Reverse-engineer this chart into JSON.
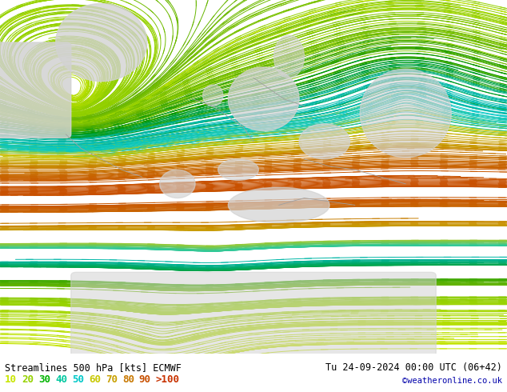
{
  "title_left": "Streamlines 500 hPa [kts] ECMWF",
  "title_right": "Tu 24-09-2024 00:00 UTC (06+42)",
  "credit": "©weatheronline.co.uk",
  "map_bg": "#c8ffb4",
  "gray_color": "#d2d2d2",
  "fig_width": 6.34,
  "fig_height": 4.9,
  "dpi": 100,
  "legend_values": [
    "10",
    "20",
    "30",
    "40",
    "50",
    "60",
    "70",
    "80",
    "90",
    ">100"
  ],
  "legend_colors": [
    "#c8e600",
    "#96e600",
    "#00c800",
    "#00c8a0",
    "#00c8c8",
    "#00c8c8",
    "#c8c800",
    "#c8a000",
    "#c87800",
    "#c85000"
  ],
  "text_color": "#000000",
  "text_fontsize": 8.5,
  "legend_fontsize": 9,
  "speed_colormap": [
    [
      0.0,
      "#c8e600"
    ],
    [
      0.15,
      "#96d200"
    ],
    [
      0.25,
      "#64b400"
    ],
    [
      0.35,
      "#009600"
    ],
    [
      0.45,
      "#00b4a0"
    ],
    [
      0.55,
      "#00c8c8"
    ],
    [
      0.65,
      "#c8c800"
    ],
    [
      0.75,
      "#c8a000"
    ],
    [
      0.85,
      "#c87800"
    ],
    [
      1.0,
      "#c85000"
    ]
  ]
}
